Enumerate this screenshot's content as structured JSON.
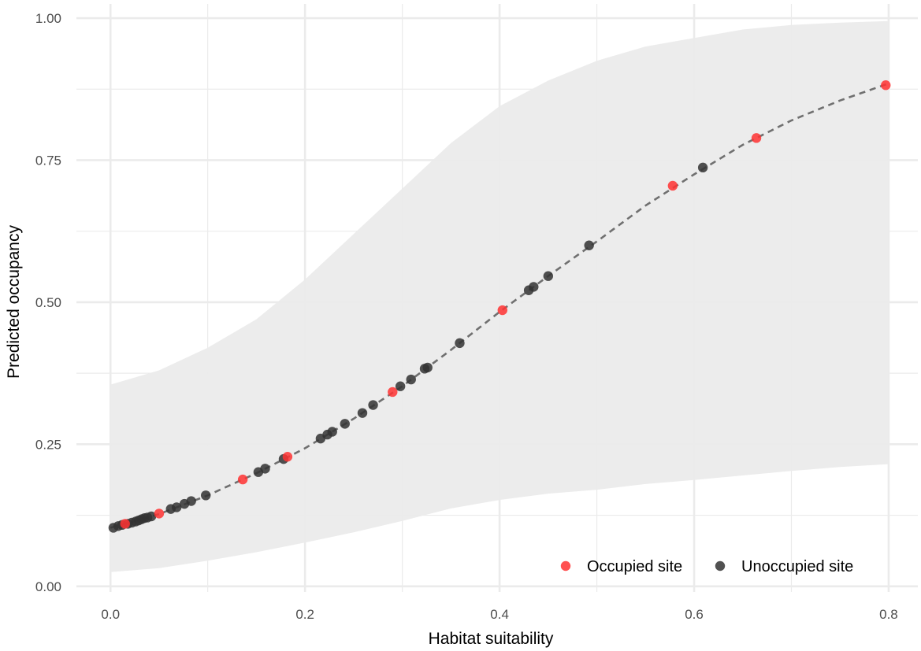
{
  "chart_data": {
    "type": "scatter",
    "title": "",
    "xlabel": "Habitat suitability",
    "ylabel": "Predicted occupancy",
    "xlim": [
      -0.035,
      0.83
    ],
    "ylim": [
      -0.01,
      1.025
    ],
    "x_ticks": [
      0.0,
      0.2,
      0.4,
      0.6,
      0.8
    ],
    "x_tick_labels": [
      "0.0",
      "0.2",
      "0.4",
      "0.6",
      "0.8"
    ],
    "y_ticks": [
      0.0,
      0.25,
      0.5,
      0.75,
      1.0
    ],
    "y_tick_labels": [
      "0.00",
      "0.25",
      "0.50",
      "0.75",
      "1.00"
    ],
    "grid": true,
    "legend_position": "bottom-right",
    "colors": {
      "occupied": "#ff3333",
      "unoccupied": "#333333",
      "ribbon": "#ebebeb",
      "fit_line": "#707070",
      "grid": "#ebebeb"
    },
    "fit_line": {
      "style": "dashed",
      "x": [
        0.0,
        0.05,
        0.1,
        0.15,
        0.2,
        0.25,
        0.3,
        0.35,
        0.4,
        0.45,
        0.5,
        0.55,
        0.6,
        0.65,
        0.7,
        0.75,
        0.8
      ],
      "y": [
        0.103,
        0.127,
        0.16,
        0.199,
        0.243,
        0.295,
        0.352,
        0.416,
        0.483,
        0.546,
        0.607,
        0.67,
        0.725,
        0.777,
        0.82,
        0.855,
        0.885
      ]
    },
    "ribbon": {
      "x": [
        0.0,
        0.05,
        0.1,
        0.15,
        0.2,
        0.25,
        0.3,
        0.35,
        0.4,
        0.45,
        0.5,
        0.55,
        0.6,
        0.65,
        0.7,
        0.75,
        0.8
      ],
      "lower": [
        0.025,
        0.032,
        0.045,
        0.06,
        0.077,
        0.095,
        0.115,
        0.137,
        0.152,
        0.163,
        0.17,
        0.18,
        0.187,
        0.195,
        0.203,
        0.21,
        0.215
      ],
      "upper": [
        0.355,
        0.38,
        0.42,
        0.47,
        0.54,
        0.62,
        0.7,
        0.78,
        0.845,
        0.89,
        0.925,
        0.95,
        0.965,
        0.98,
        0.988,
        0.992,
        0.995
      ]
    },
    "series": [
      {
        "name": "Occupied site",
        "points": [
          {
            "x": 0.015,
            "y": 0.11
          },
          {
            "x": 0.05,
            "y": 0.128
          },
          {
            "x": 0.136,
            "y": 0.188
          },
          {
            "x": 0.182,
            "y": 0.228
          },
          {
            "x": 0.29,
            "y": 0.342
          },
          {
            "x": 0.403,
            "y": 0.486
          },
          {
            "x": 0.578,
            "y": 0.705
          },
          {
            "x": 0.664,
            "y": 0.789
          },
          {
            "x": 0.797,
            "y": 0.882
          }
        ]
      },
      {
        "name": "Unoccupied site",
        "points": [
          {
            "x": 0.003,
            "y": 0.103
          },
          {
            "x": 0.008,
            "y": 0.106
          },
          {
            "x": 0.012,
            "y": 0.108
          },
          {
            "x": 0.018,
            "y": 0.11
          },
          {
            "x": 0.022,
            "y": 0.112
          },
          {
            "x": 0.026,
            "y": 0.114
          },
          {
            "x": 0.029,
            "y": 0.116
          },
          {
            "x": 0.032,
            "y": 0.118
          },
          {
            "x": 0.035,
            "y": 0.12
          },
          {
            "x": 0.038,
            "y": 0.121
          },
          {
            "x": 0.042,
            "y": 0.123
          },
          {
            "x": 0.062,
            "y": 0.136
          },
          {
            "x": 0.068,
            "y": 0.139
          },
          {
            "x": 0.076,
            "y": 0.145
          },
          {
            "x": 0.083,
            "y": 0.15
          },
          {
            "x": 0.098,
            "y": 0.16
          },
          {
            "x": 0.152,
            "y": 0.201
          },
          {
            "x": 0.159,
            "y": 0.207
          },
          {
            "x": 0.178,
            "y": 0.224
          },
          {
            "x": 0.216,
            "y": 0.26
          },
          {
            "x": 0.223,
            "y": 0.267
          },
          {
            "x": 0.228,
            "y": 0.272
          },
          {
            "x": 0.241,
            "y": 0.286
          },
          {
            "x": 0.259,
            "y": 0.305
          },
          {
            "x": 0.27,
            "y": 0.319
          },
          {
            "x": 0.298,
            "y": 0.352
          },
          {
            "x": 0.309,
            "y": 0.364
          },
          {
            "x": 0.323,
            "y": 0.383
          },
          {
            "x": 0.326,
            "y": 0.385
          },
          {
            "x": 0.359,
            "y": 0.428
          },
          {
            "x": 0.43,
            "y": 0.521
          },
          {
            "x": 0.435,
            "y": 0.527
          },
          {
            "x": 0.45,
            "y": 0.546
          },
          {
            "x": 0.492,
            "y": 0.6
          },
          {
            "x": 0.609,
            "y": 0.737
          }
        ]
      }
    ]
  }
}
